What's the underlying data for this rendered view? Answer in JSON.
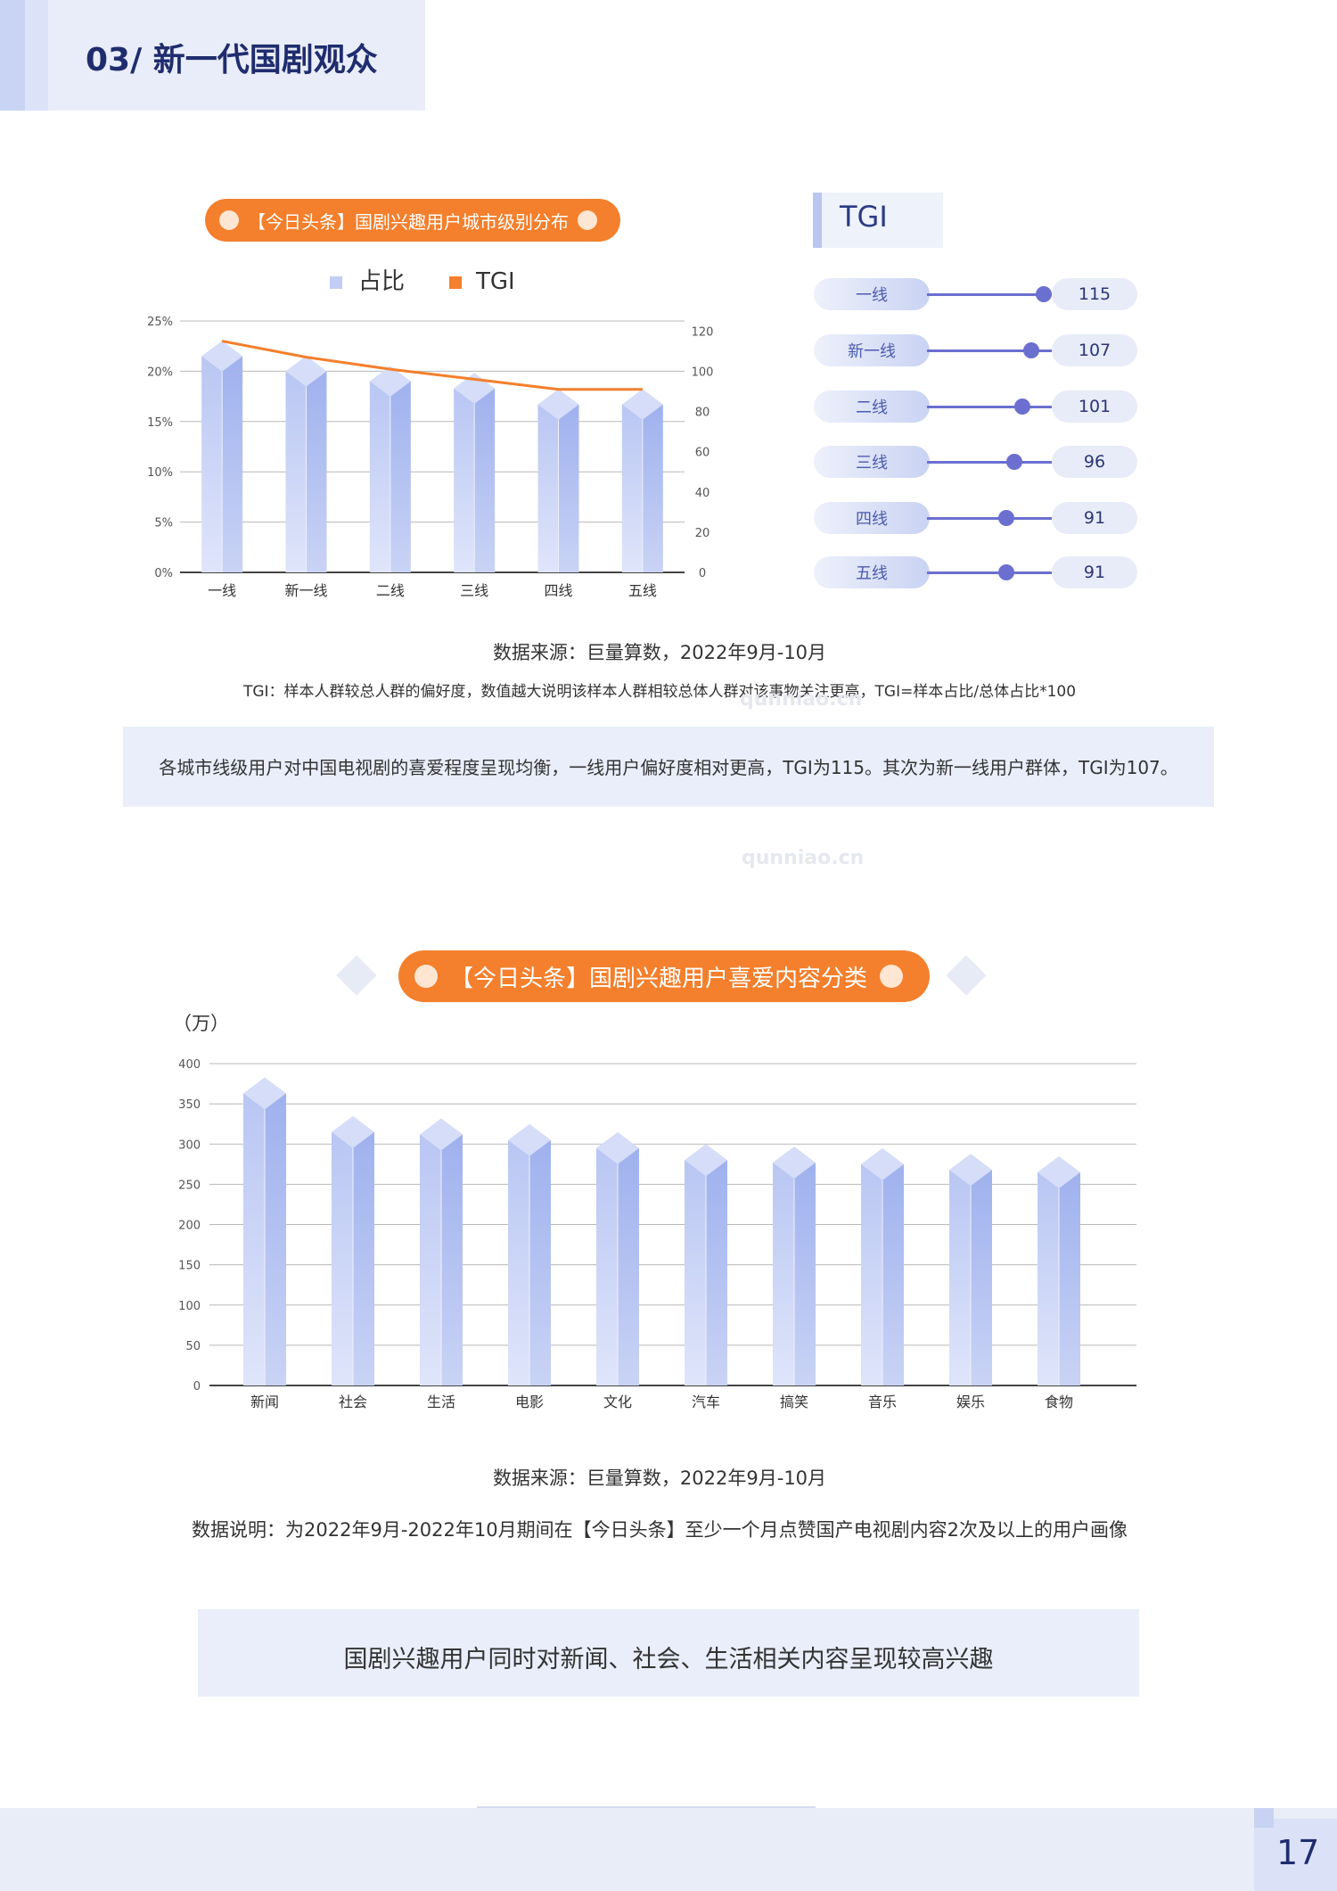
{
  "header": {
    "title": "03/ 新一代国剧观众"
  },
  "chart1": {
    "pill_title": "【今日头条】国剧兴趣用户城市级别分布",
    "legend": [
      "占比",
      "TGI"
    ]
  },
  "tgi_panel": {
    "title": "TGI",
    "items": [
      {
        "label": "一线",
        "value": "115"
      },
      {
        "label": "新一线",
        "value": "107"
      },
      {
        "label": "二线",
        "value": "101"
      },
      {
        "label": "三线",
        "value": "96"
      },
      {
        "label": "四线",
        "value": "91"
      },
      {
        "label": "五线",
        "value": "91"
      }
    ]
  },
  "chart1_notes": {
    "source": "数据来源：巨量算数，2022年9月-10月",
    "tgi_desc": "TGI：样本人群较总人群的偏好度，数值越大说明该样本人群相较总体人群对该事物关注更高，TGI=样本占比/总体占比*100",
    "summary": "各城市线级用户对中国电视剧的喜爱程度呈现均衡，一线用户偏好度相对更高，TGI为115。其次为新一线用户群体，TGI为107。"
  },
  "chart2": {
    "pill_title": "【今日头条】国剧兴趣用户喜爱内容分类",
    "unit": "（万）"
  },
  "chart2_notes": {
    "source": "数据来源：巨量算数，2022年9月-10月",
    "desc": "数据说明：为2022年9月-2022年10月期间在【今日头条】至少一个月点赞国产电视剧内容2次及以上的用户画像",
    "summary": "国剧兴趣用户同时对新闻、社会、生活相关内容呈现较高兴趣"
  },
  "watermark": "qunniao.cn",
  "footer": {
    "page_number": "17"
  },
  "colors": {
    "accent": "#f47f2c",
    "bar": "#c2cdf5",
    "tgi_line": "#6b6fd0",
    "navy": "#1f2d6e"
  },
  "chart_data": [
    {
      "type": "bar",
      "categories": [
        "一线",
        "新一线",
        "二线",
        "三线",
        "四线",
        "五线"
      ],
      "series": [
        {
          "name": "占比",
          "axis": "left",
          "type": "bar",
          "values": [
            21.5,
            20.0,
            19.0,
            18.3,
            16.7,
            16.7
          ]
        },
        {
          "name": "TGI",
          "axis": "right",
          "type": "line",
          "values": [
            115,
            107,
            101,
            96,
            91,
            91
          ]
        }
      ],
      "y_left_ticks": [
        "0%",
        "5%",
        "10%",
        "15%",
        "20%",
        "25%"
      ],
      "ylim_left": [
        0,
        25
      ],
      "y_right_ticks": [
        "0",
        "20",
        "40",
        "60",
        "80",
        "100",
        "120"
      ],
      "ylim_right": [
        0,
        125
      ],
      "grid": true,
      "legend": "top-center"
    },
    {
      "type": "bar",
      "categories": [
        "新闻",
        "社会",
        "生活",
        "电影",
        "文化",
        "汽车",
        "搞笑",
        "音乐",
        "娱乐",
        "食物"
      ],
      "values": [
        363,
        315,
        312,
        305,
        295,
        280,
        277,
        275,
        268,
        265
      ],
      "y_ticks": [
        "0",
        "50",
        "100",
        "150",
        "200",
        "250",
        "300",
        "350",
        "400"
      ],
      "ylim": [
        0,
        400
      ],
      "grid": true
    }
  ]
}
